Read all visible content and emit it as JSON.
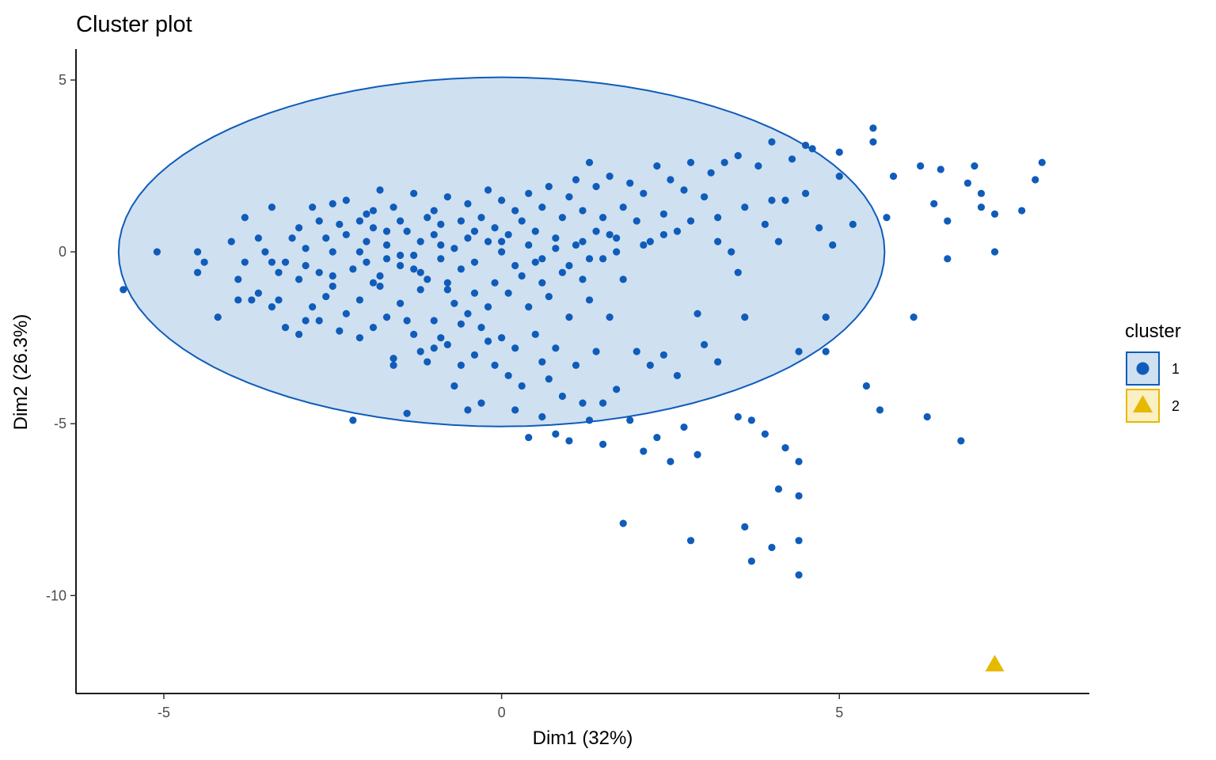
{
  "chart_data": {
    "type": "scatter",
    "title": "Cluster plot",
    "xlabel": "Dim1 (32%)",
    "ylabel": "Dim2 (26.3%)",
    "xlim": [
      -6.3,
      8.7
    ],
    "ylim": [
      -12.85,
      5.9
    ],
    "xticks": [
      -5,
      0,
      5
    ],
    "yticks": [
      5,
      0,
      -5,
      -10
    ],
    "grid": false,
    "legend": {
      "title": "cluster",
      "placement": "right"
    },
    "ellipse": {
      "cluster": "1",
      "center": [
        0.0,
        0.0
      ],
      "rx": 5.67,
      "ry": 5.08,
      "fill": "#cfe0f1",
      "stroke": "#0f5cba"
    },
    "series": [
      {
        "name": "1",
        "color": "#0f5cba",
        "shape": "circle",
        "points": [
          [
            -5.6,
            -1.1
          ],
          [
            -5.1,
            0.0
          ],
          [
            -4.5,
            0.0
          ],
          [
            -4.5,
            -0.6
          ],
          [
            -4.4,
            -0.3
          ],
          [
            -4.2,
            -1.9
          ],
          [
            -4.0,
            0.3
          ],
          [
            -3.9,
            -0.8
          ],
          [
            -3.9,
            -1.4
          ],
          [
            -3.8,
            1.0
          ],
          [
            -3.8,
            -0.3
          ],
          [
            -3.7,
            -1.4
          ],
          [
            -3.6,
            0.4
          ],
          [
            -3.6,
            -1.2
          ],
          [
            -3.5,
            0.0
          ],
          [
            -3.4,
            -0.3
          ],
          [
            -3.4,
            1.3
          ],
          [
            -3.3,
            -1.4
          ],
          [
            -3.3,
            -0.6
          ],
          [
            -3.2,
            -0.3
          ],
          [
            -3.2,
            -2.2
          ],
          [
            -3.1,
            0.4
          ],
          [
            -3.0,
            -0.8
          ],
          [
            -3.0,
            -2.4
          ],
          [
            -3.0,
            0.7
          ],
          [
            -2.9,
            0.1
          ],
          [
            -2.9,
            -0.4
          ],
          [
            -2.8,
            1.3
          ],
          [
            -2.8,
            -1.6
          ],
          [
            -2.7,
            -0.6
          ],
          [
            -2.7,
            0.9
          ],
          [
            -2.7,
            -2.0
          ],
          [
            -2.6,
            0.4
          ],
          [
            -2.6,
            -1.3
          ],
          [
            -2.5,
            1.4
          ],
          [
            -2.5,
            0.0
          ],
          [
            -2.5,
            -0.7
          ],
          [
            -2.4,
            -2.3
          ],
          [
            -2.4,
            0.8
          ],
          [
            -2.3,
            -1.8
          ],
          [
            -2.3,
            1.5
          ],
          [
            -2.3,
            0.5
          ],
          [
            -2.2,
            -0.5
          ],
          [
            -2.2,
            -4.9
          ],
          [
            -2.1,
            0.9
          ],
          [
            -2.1,
            -1.4
          ],
          [
            -2.1,
            -2.5
          ],
          [
            -2.0,
            1.1
          ],
          [
            -2.0,
            0.3
          ],
          [
            -2.0,
            -0.3
          ],
          [
            -1.9,
            1.2
          ],
          [
            -1.9,
            -2.2
          ],
          [
            -1.9,
            0.7
          ],
          [
            -1.8,
            -0.7
          ],
          [
            -1.8,
            1.8
          ],
          [
            -1.8,
            -1.0
          ],
          [
            -1.7,
            0.6
          ],
          [
            -1.7,
            -1.9
          ],
          [
            -1.7,
            0.2
          ],
          [
            -1.6,
            -3.1
          ],
          [
            -1.6,
            -3.3
          ],
          [
            -1.6,
            1.3
          ],
          [
            -1.5,
            -0.1
          ],
          [
            -1.5,
            0.9
          ],
          [
            -1.5,
            -1.5
          ],
          [
            -1.4,
            -2.0
          ],
          [
            -1.4,
            0.6
          ],
          [
            -1.4,
            -4.7
          ],
          [
            -1.3,
            -2.4
          ],
          [
            -1.3,
            -0.5
          ],
          [
            -1.3,
            1.7
          ],
          [
            -1.2,
            0.3
          ],
          [
            -1.2,
            -1.1
          ],
          [
            -1.2,
            -2.9
          ],
          [
            -1.1,
            1.0
          ],
          [
            -1.1,
            -0.8
          ],
          [
            -1.1,
            -3.2
          ],
          [
            -1.0,
            0.5
          ],
          [
            -1.0,
            -2.0
          ],
          [
            -1.0,
            1.2
          ],
          [
            -0.9,
            -0.2
          ],
          [
            -0.9,
            -2.5
          ],
          [
            -0.9,
            0.8
          ],
          [
            -0.8,
            -1.1
          ],
          [
            -0.8,
            -2.7
          ],
          [
            -0.8,
            1.6
          ],
          [
            -0.7,
            0.1
          ],
          [
            -0.7,
            -1.5
          ],
          [
            -0.7,
            -3.9
          ],
          [
            -0.6,
            0.9
          ],
          [
            -0.6,
            -2.1
          ],
          [
            -0.6,
            -0.5
          ],
          [
            -0.5,
            1.4
          ],
          [
            -0.5,
            -4.6
          ],
          [
            -0.5,
            -1.8
          ],
          [
            -0.4,
            0.6
          ],
          [
            -0.4,
            -3.0
          ],
          [
            -0.4,
            -0.3
          ],
          [
            -0.3,
            1.0
          ],
          [
            -0.3,
            -2.2
          ],
          [
            -0.3,
            -4.4
          ],
          [
            -0.2,
            0.3
          ],
          [
            -0.2,
            -1.6
          ],
          [
            -0.2,
            1.8
          ],
          [
            -0.1,
            -0.9
          ],
          [
            -0.1,
            -3.3
          ],
          [
            -0.1,
            0.7
          ],
          [
            0.0,
            -2.5
          ],
          [
            0.0,
            0.0
          ],
          [
            0.0,
            1.5
          ],
          [
            0.1,
            -3.6
          ],
          [
            0.1,
            -1.2
          ],
          [
            0.1,
            0.5
          ],
          [
            0.2,
            -4.6
          ],
          [
            0.2,
            -2.8
          ],
          [
            0.2,
            1.2
          ],
          [
            0.3,
            -0.7
          ],
          [
            0.3,
            -3.9
          ],
          [
            0.3,
            0.9
          ],
          [
            0.4,
            -5.4
          ],
          [
            0.4,
            -1.6
          ],
          [
            0.4,
            1.7
          ],
          [
            0.5,
            -0.3
          ],
          [
            0.5,
            -2.4
          ],
          [
            0.5,
            0.6
          ],
          [
            0.6,
            1.3
          ],
          [
            0.6,
            -4.8
          ],
          [
            0.6,
            -0.9
          ],
          [
            0.7,
            -3.7
          ],
          [
            0.7,
            1.9
          ],
          [
            0.7,
            -1.3
          ],
          [
            0.8,
            0.4
          ],
          [
            0.8,
            -5.3
          ],
          [
            0.8,
            -2.8
          ],
          [
            0.9,
            1.0
          ],
          [
            0.9,
            -0.6
          ],
          [
            0.9,
            -4.2
          ],
          [
            1.0,
            1.6
          ],
          [
            1.0,
            -1.9
          ],
          [
            1.0,
            -5.5
          ],
          [
            1.1,
            0.2
          ],
          [
            1.1,
            -3.3
          ],
          [
            1.1,
            2.1
          ],
          [
            1.2,
            -0.8
          ],
          [
            1.2,
            -4.4
          ],
          [
            1.2,
            1.2
          ],
          [
            1.3,
            -1.4
          ],
          [
            1.3,
            2.6
          ],
          [
            1.3,
            -4.9
          ],
          [
            1.4,
            0.6
          ],
          [
            1.4,
            -2.9
          ],
          [
            1.4,
            1.9
          ],
          [
            1.5,
            -0.2
          ],
          [
            1.5,
            -5.6
          ],
          [
            1.5,
            1.0
          ],
          [
            1.6,
            -1.9
          ],
          [
            1.6,
            2.2
          ],
          [
            1.7,
            0.4
          ],
          [
            1.7,
            -4.0
          ],
          [
            1.8,
            1.3
          ],
          [
            1.8,
            -7.9
          ],
          [
            1.8,
            -0.8
          ],
          [
            1.9,
            2.0
          ],
          [
            1.9,
            -4.9
          ],
          [
            2.0,
            0.9
          ],
          [
            2.0,
            -2.9
          ],
          [
            2.1,
            -5.8
          ],
          [
            2.1,
            1.7
          ],
          [
            2.2,
            0.3
          ],
          [
            2.2,
            -3.3
          ],
          [
            2.3,
            2.5
          ],
          [
            2.3,
            -5.4
          ],
          [
            2.4,
            1.1
          ],
          [
            2.4,
            -3.0
          ],
          [
            2.5,
            -6.1
          ],
          [
            2.5,
            2.1
          ],
          [
            2.6,
            0.6
          ],
          [
            2.7,
            -5.1
          ],
          [
            2.7,
            1.8
          ],
          [
            2.8,
            -8.4
          ],
          [
            2.8,
            2.6
          ],
          [
            2.9,
            -1.8
          ],
          [
            2.9,
            -5.9
          ],
          [
            3.0,
            1.6
          ],
          [
            3.0,
            -2.7
          ],
          [
            3.1,
            2.3
          ],
          [
            3.2,
            0.3
          ],
          [
            3.3,
            2.6
          ],
          [
            3.4,
            0.0
          ],
          [
            3.5,
            -4.8
          ],
          [
            3.5,
            2.8
          ],
          [
            3.5,
            -0.6
          ],
          [
            3.6,
            -8.0
          ],
          [
            3.6,
            -1.9
          ],
          [
            3.7,
            -9.0
          ],
          [
            3.7,
            -4.9
          ],
          [
            3.8,
            2.5
          ],
          [
            3.9,
            0.8
          ],
          [
            3.9,
            -5.3
          ],
          [
            4.0,
            3.2
          ],
          [
            4.0,
            -8.6
          ],
          [
            4.1,
            -6.9
          ],
          [
            4.1,
            0.3
          ],
          [
            4.2,
            1.5
          ],
          [
            4.2,
            -5.7
          ],
          [
            4.3,
            2.7
          ],
          [
            4.4,
            -6.1
          ],
          [
            4.4,
            -7.1
          ],
          [
            4.4,
            -8.4
          ],
          [
            4.4,
            -9.4
          ],
          [
            4.4,
            -2.9
          ],
          [
            4.5,
            3.1
          ],
          [
            4.6,
            3.0
          ],
          [
            4.7,
            0.7
          ],
          [
            4.8,
            -1.9
          ],
          [
            4.8,
            -2.9
          ],
          [
            4.9,
            0.2
          ],
          [
            5.0,
            2.9
          ],
          [
            5.2,
            0.8
          ],
          [
            5.4,
            -3.9
          ],
          [
            5.5,
            3.2
          ],
          [
            5.5,
            3.6
          ],
          [
            5.6,
            -4.6
          ],
          [
            5.7,
            1.0
          ],
          [
            5.8,
            2.2
          ],
          [
            6.1,
            -1.9
          ],
          [
            6.2,
            2.5
          ],
          [
            6.3,
            -4.8
          ],
          [
            6.4,
            1.4
          ],
          [
            6.5,
            2.4
          ],
          [
            6.6,
            -0.2
          ],
          [
            6.6,
            0.9
          ],
          [
            6.8,
            -5.5
          ],
          [
            6.9,
            2.0
          ],
          [
            7.0,
            2.5
          ],
          [
            7.1,
            1.7
          ],
          [
            7.1,
            1.3
          ],
          [
            7.3,
            1.1
          ],
          [
            7.3,
            0.0
          ],
          [
            7.7,
            1.2
          ],
          [
            7.9,
            2.1
          ],
          [
            8.0,
            2.6
          ],
          [
            -3.4,
            -1.6
          ],
          [
            -2.9,
            -2.0
          ],
          [
            -2.5,
            -1.0
          ],
          [
            -1.9,
            -0.9
          ],
          [
            -1.5,
            -0.4
          ],
          [
            -1.0,
            -2.8
          ],
          [
            -0.6,
            -3.3
          ],
          [
            -0.2,
            -2.6
          ],
          [
            0.6,
            -3.2
          ],
          [
            1.5,
            -4.4
          ],
          [
            2.6,
            -3.6
          ],
          [
            3.2,
            -3.2
          ],
          [
            -1.2,
            -0.6
          ],
          [
            -0.8,
            -0.9
          ],
          [
            -0.4,
            -1.2
          ],
          [
            0.2,
            -0.4
          ],
          [
            0.6,
            -0.2
          ],
          [
            1.0,
            -0.4
          ],
          [
            1.3,
            -0.2
          ],
          [
            1.7,
            0.0
          ],
          [
            2.1,
            0.2
          ],
          [
            2.4,
            0.5
          ],
          [
            2.8,
            0.9
          ],
          [
            3.2,
            1.0
          ],
          [
            3.6,
            1.3
          ],
          [
            4.0,
            1.5
          ],
          [
            4.5,
            1.7
          ],
          [
            5.0,
            2.2
          ],
          [
            -2.1,
            0.0
          ],
          [
            -1.7,
            -0.2
          ],
          [
            -1.3,
            -0.1
          ],
          [
            -0.9,
            0.2
          ],
          [
            -0.5,
            0.4
          ],
          [
            0.0,
            0.3
          ],
          [
            0.4,
            0.2
          ],
          [
            0.8,
            0.1
          ],
          [
            1.2,
            0.3
          ],
          [
            1.6,
            0.5
          ]
        ]
      },
      {
        "name": "2",
        "color": "#e7b800",
        "shape": "triangle",
        "points": [
          [
            7.3,
            -12.0
          ]
        ]
      }
    ]
  }
}
